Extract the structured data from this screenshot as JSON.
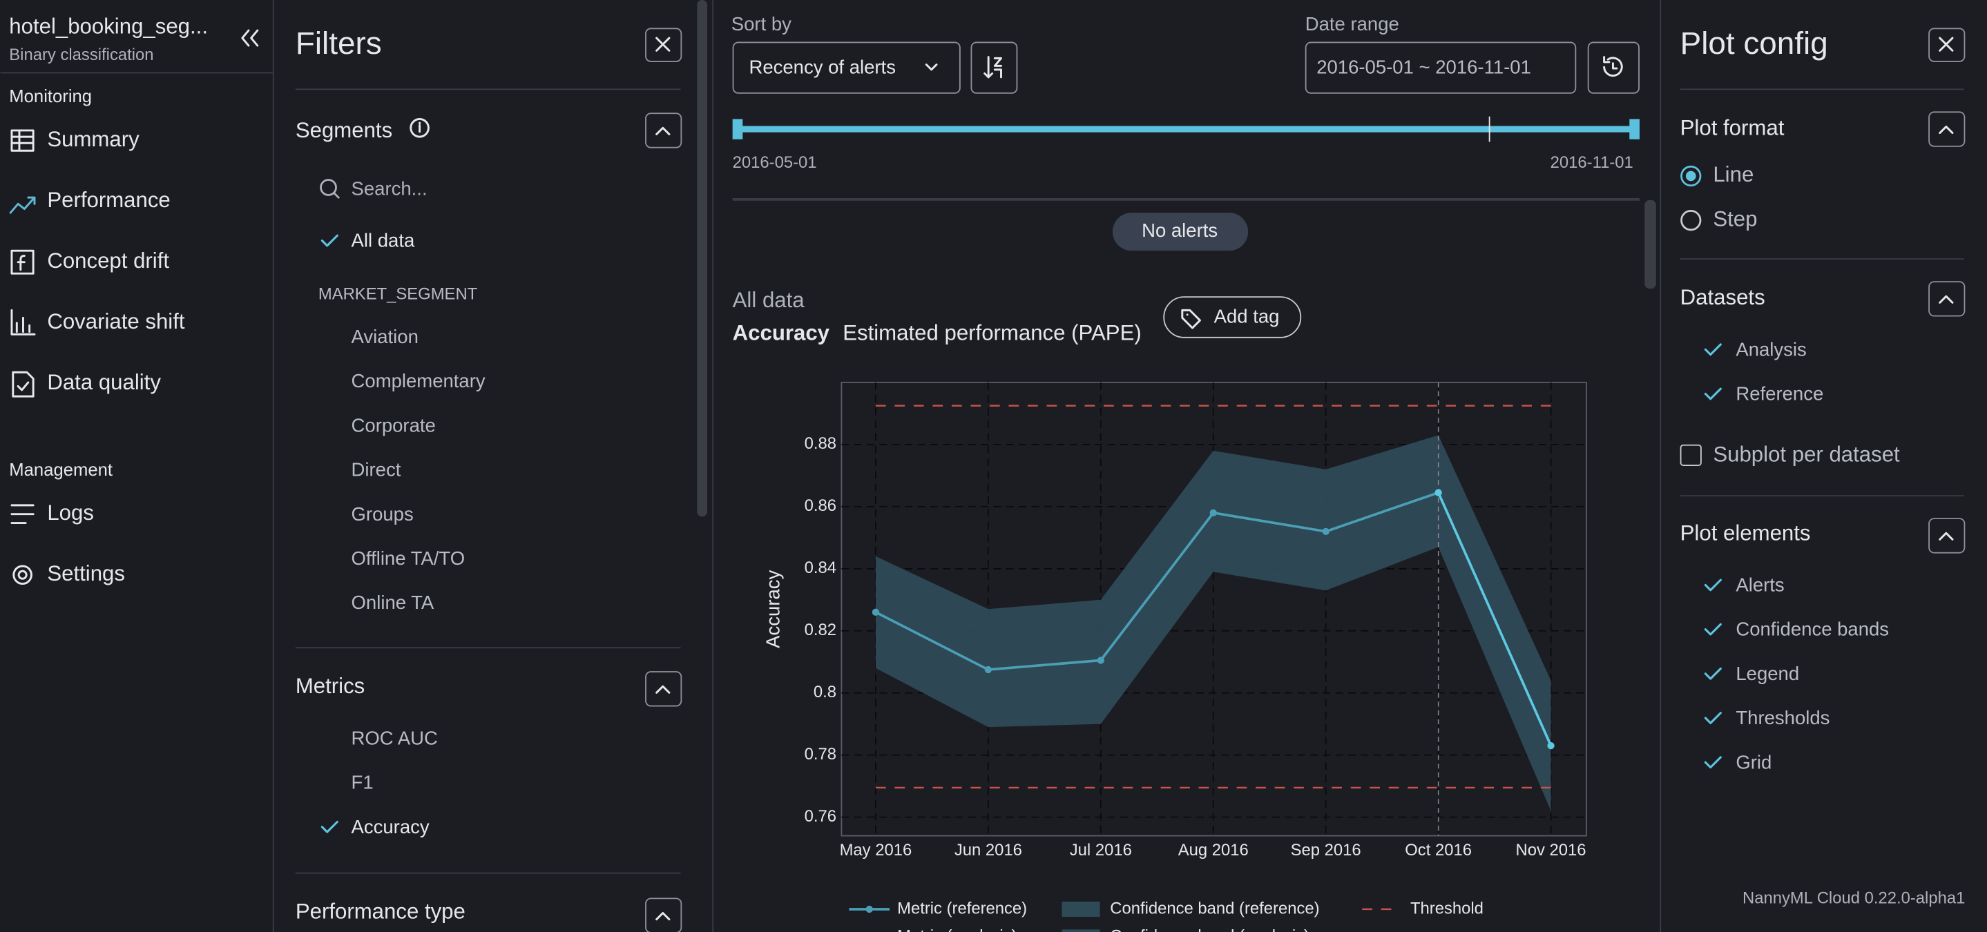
{
  "sidebar": {
    "title": "hotel_booking_seg...",
    "subtitle": "Binary classification",
    "sections": [
      {
        "heading": "Monitoring",
        "items": [
          "Summary",
          "Performance",
          "Concept drift",
          "Covariate shift",
          "Data quality"
        ]
      },
      {
        "heading": "Management",
        "items": [
          "Logs",
          "Settings"
        ]
      }
    ]
  },
  "filters": {
    "title": "Filters",
    "segments_title": "Segments",
    "search_placeholder": "Search...",
    "all_data": "All data",
    "group": "MARKET_SEGMENT",
    "segments": [
      "Aviation",
      "Complementary",
      "Corporate",
      "Direct",
      "Groups",
      "Offline TA/TO",
      "Online TA"
    ],
    "metrics_title": "Metrics",
    "metrics": [
      "ROC AUC",
      "F1",
      "Accuracy"
    ],
    "performance_type_title": "Performance type"
  },
  "toolbar": {
    "sort_label": "Sort by",
    "sort_value": "Recency of alerts",
    "date_label": "Date range",
    "date_value": "2016-05-01 ~ 2016-11-01",
    "range_start": "2016-05-01",
    "range_end": "2016-11-01"
  },
  "alerts_badge": "No alerts",
  "chart_header": {
    "segment": "All data",
    "metric": "Accuracy",
    "subtitle": "Estimated performance (PAPE)",
    "add_tag": "Add tag"
  },
  "chart_data": {
    "type": "line",
    "categories": [
      "May 2016",
      "Jun 2016",
      "Jul 2016",
      "Aug 2016",
      "Sep 2016",
      "Oct 2016",
      "Nov 2016"
    ],
    "ylabel": "Accuracy",
    "ylim": [
      0.754,
      0.9
    ],
    "yticks": [
      0.76,
      0.78,
      0.8,
      0.82,
      0.84,
      0.86,
      0.88
    ],
    "grid": true,
    "series": [
      {
        "name": "Metric (reference)",
        "color": "#4a9fb6",
        "values": [
          0.826,
          0.8075,
          0.8105,
          0.858,
          0.852,
          0.8645,
          null
        ]
      },
      {
        "name": "Metric (analysis)",
        "color": "#5cc8e2",
        "values": [
          null,
          null,
          null,
          null,
          null,
          0.8645,
          0.783
        ]
      }
    ],
    "bands": [
      {
        "name": "Confidence band (reference)",
        "color": "#2f4a57",
        "upper": [
          0.844,
          0.827,
          0.83,
          0.878,
          0.872,
          0.883,
          null
        ],
        "lower": [
          0.808,
          0.789,
          0.79,
          0.839,
          0.833,
          0.847,
          null
        ]
      },
      {
        "name": "Confidence band (analysis)",
        "color": "#2f4a57",
        "upper": [
          null,
          null,
          null,
          null,
          null,
          0.883,
          0.804
        ],
        "lower": [
          null,
          null,
          null,
          null,
          null,
          0.847,
          0.762
        ]
      }
    ],
    "thresholds": {
      "name": "Threshold",
      "color": "#c9524a",
      "values": [
        0.8925,
        0.7695
      ]
    }
  },
  "plot_config": {
    "title": "Plot config",
    "format_title": "Plot format",
    "formats": [
      "Line",
      "Step"
    ],
    "datasets_title": "Datasets",
    "datasets": [
      "Analysis",
      "Reference"
    ],
    "subplot": "Subplot per dataset",
    "elements_title": "Plot elements",
    "elements": [
      "Alerts",
      "Confidence bands",
      "Legend",
      "Thresholds",
      "Grid"
    ],
    "footer": "NannyML Cloud 0.22.0-alpha1"
  }
}
